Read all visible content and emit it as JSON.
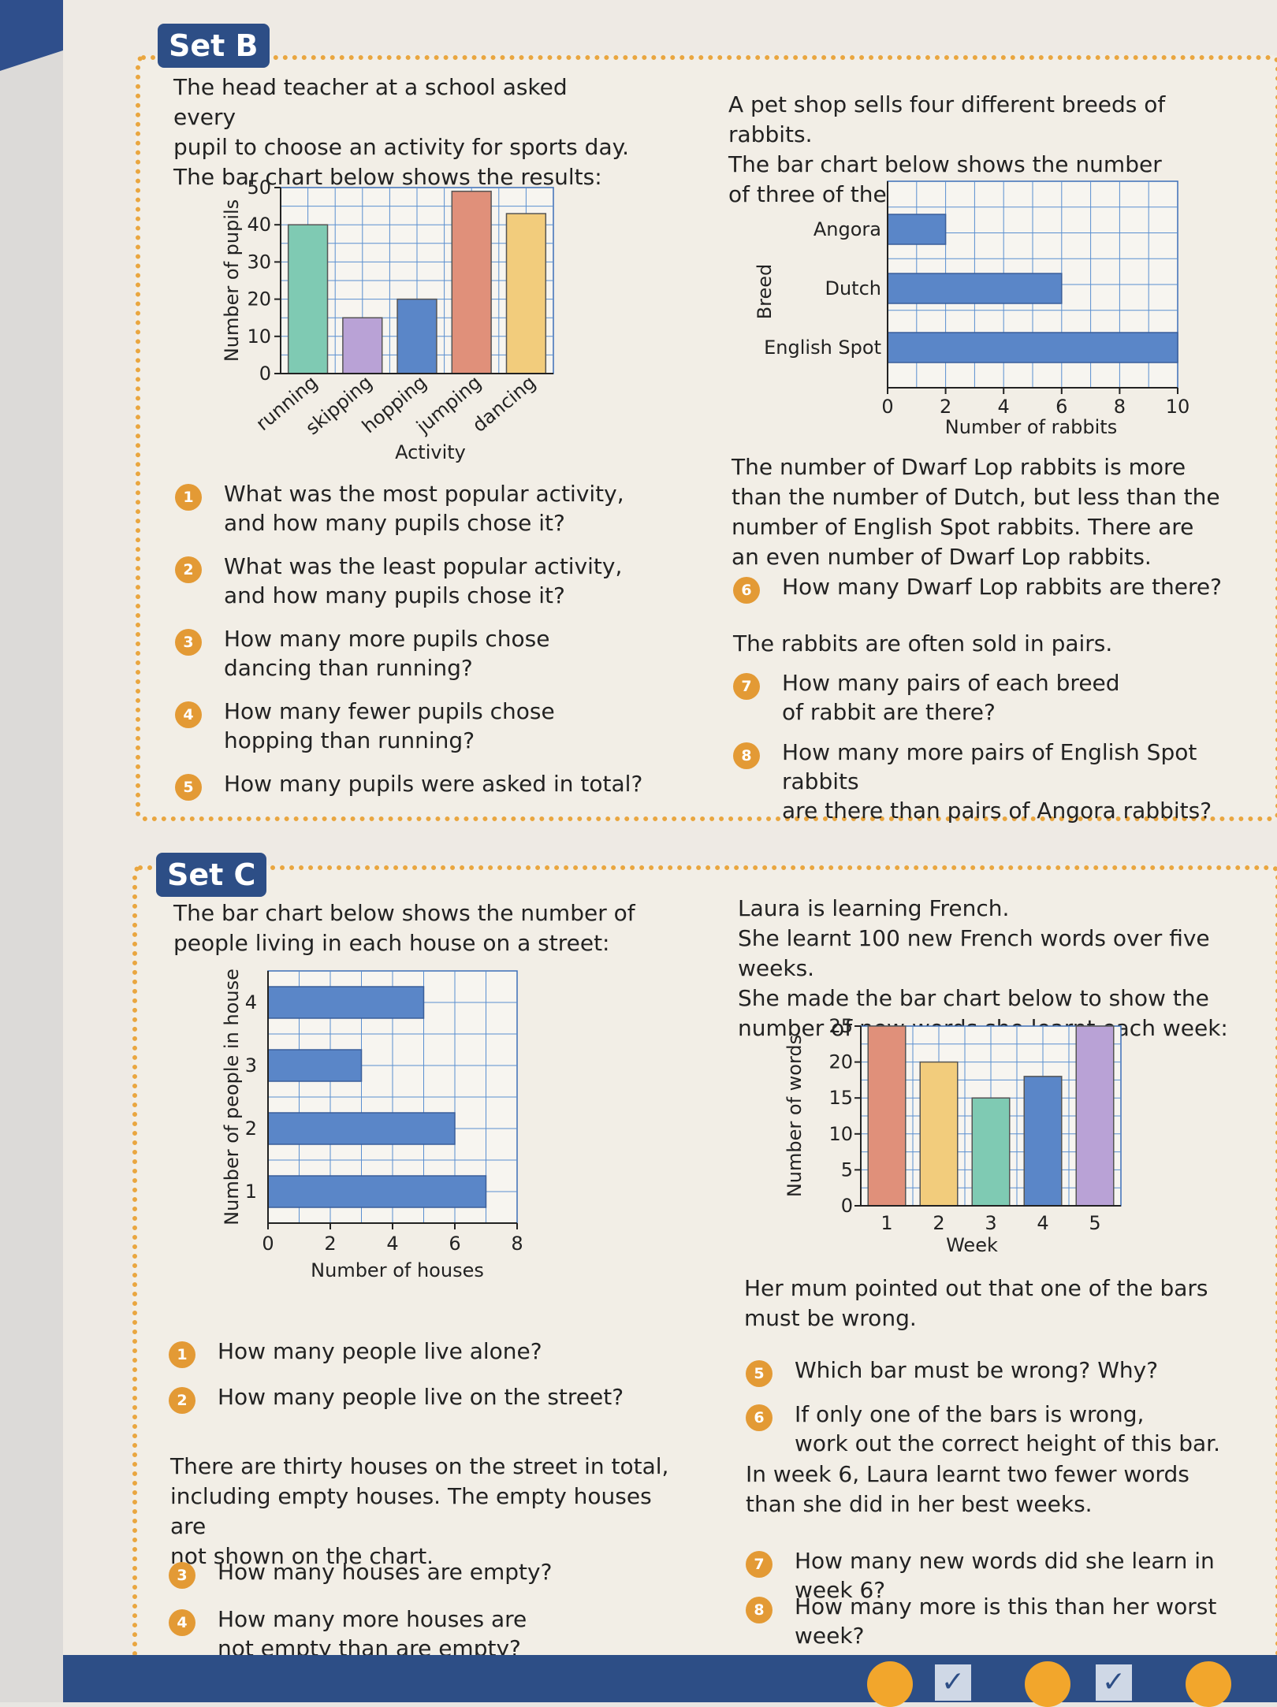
{
  "set_b": {
    "tag": "Set B",
    "intro_left": [
      "The head teacher at a school asked every",
      "pupil to choose an activity for sports day.",
      "The bar chart below shows the results:"
    ],
    "intro_right": [
      "A pet shop sells four different breeds of rabbits.",
      "The bar chart below shows the number",
      "of three of the breeds in the shop:"
    ],
    "questions_left": [
      {
        "num": "1",
        "lines": [
          "What was the most popular activity,",
          "and how many pupils chose it?"
        ]
      },
      {
        "num": "2",
        "lines": [
          "What was the least popular activity,",
          "and how many pupils chose it?"
        ]
      },
      {
        "num": "3",
        "lines": [
          "How many more pupils chose",
          "dancing than running?"
        ]
      },
      {
        "num": "4",
        "lines": [
          "How many fewer pupils chose",
          "hopping than running?"
        ]
      },
      {
        "num": "5",
        "lines": [
          "How many pupils were asked in total?"
        ]
      }
    ],
    "middle_right": [
      "The number of Dwarf Lop rabbits is more",
      "than the number of Dutch, but less than the",
      "number of English Spot rabbits.  There are",
      "an even number of Dwarf Lop rabbits."
    ],
    "q6": {
      "num": "6",
      "lines": [
        "How many Dwarf Lop rabbits are there?"
      ]
    },
    "pairs_text": "The rabbits are often sold in pairs.",
    "questions_right": [
      {
        "num": "7",
        "lines": [
          "How many pairs of each breed",
          "of rabbit are there?"
        ]
      },
      {
        "num": "8",
        "lines": [
          "How many more pairs of English Spot rabbits",
          "are there than pairs of Angora rabbits?"
        ]
      }
    ]
  },
  "set_c": {
    "tag": "Set C",
    "intro_left": [
      "The bar chart below shows the number of",
      "people living in each house on a street:"
    ],
    "intro_right": [
      "Laura is learning French.",
      "She learnt 100 new French words over five weeks.",
      "She made the bar chart below to show the",
      "number of new words she learnt each week:"
    ],
    "questions_left_a": [
      {
        "num": "1",
        "lines": [
          "How many people live alone?"
        ]
      },
      {
        "num": "2",
        "lines": [
          "How many people live on the street?"
        ]
      }
    ],
    "middle_left": [
      "There are thirty houses on the street in total,",
      "including empty houses.  The empty houses are",
      "not shown on the chart."
    ],
    "questions_left_b": [
      {
        "num": "3",
        "lines": [
          "How many houses are empty?"
        ]
      },
      {
        "num": "4",
        "lines": [
          "How many more houses are",
          "not empty than are empty?"
        ]
      }
    ],
    "mum_text": [
      "Her mum pointed out that one of the bars",
      "must be wrong."
    ],
    "questions_right_a": [
      {
        "num": "5",
        "lines": [
          "Which bar must be wrong?  Why?"
        ]
      },
      {
        "num": "6",
        "lines": [
          "If only one of the bars is wrong,",
          "work out the correct height of this bar."
        ]
      }
    ],
    "week6_text": [
      "In week 6, Laura learnt two fewer words",
      "than she did in her best weeks."
    ],
    "questions_right_b": [
      {
        "num": "7",
        "lines": [
          "How many new words did she learn in week 6?"
        ]
      },
      {
        "num": "8",
        "lines": [
          "How many more is this than her worst week?"
        ]
      }
    ]
  },
  "chart_data": [
    {
      "type": "bar",
      "orientation": "vertical",
      "categories": [
        "running",
        "skipping",
        "hopping",
        "jumping",
        "dancing"
      ],
      "values": [
        40,
        15,
        20,
        49,
        43
      ],
      "colors": [
        "#7fcab3",
        "#b9a2d6",
        "#5a86c8",
        "#e0907a",
        "#f2cc7c"
      ],
      "xlabel": "Activity",
      "ylabel": "Number of pupils",
      "yticks": [
        "0",
        "10",
        "20",
        "30",
        "40",
        "50"
      ],
      "ylim": [
        0,
        50
      ],
      "grid": true
    },
    {
      "type": "bar",
      "orientation": "horizontal",
      "categories": [
        "Angora",
        "Dutch",
        "English Spot"
      ],
      "values": [
        2,
        6,
        10
      ],
      "colors": [
        "#5a86c8",
        "#5a86c8",
        "#5a86c8"
      ],
      "xlabel": "Number of rabbits",
      "ylabel": "Breed",
      "xticks": [
        "0",
        "2",
        "4",
        "6",
        "8",
        "10"
      ],
      "xlim": [
        0,
        10
      ],
      "grid": true
    },
    {
      "type": "bar",
      "orientation": "horizontal",
      "categories": [
        "4",
        "3",
        "2",
        "1"
      ],
      "values": [
        5,
        3,
        6,
        7
      ],
      "colors": [
        "#5a86c8",
        "#5a86c8",
        "#5a86c8",
        "#5a86c8"
      ],
      "xlabel": "Number of houses",
      "ylabel": "Number of people in house",
      "xticks": [
        "0",
        "2",
        "4",
        "6",
        "8"
      ],
      "xlim": [
        0,
        8
      ],
      "grid": true
    },
    {
      "type": "bar",
      "orientation": "vertical",
      "categories": [
        "1",
        "2",
        "3",
        "4",
        "5"
      ],
      "values": [
        25,
        20,
        15,
        18,
        25
      ],
      "colors": [
        "#e0907a",
        "#f2cc7c",
        "#7fcab3",
        "#5a86c8",
        "#b9a2d6"
      ],
      "xlabel": "Week",
      "ylabel": "Number of words",
      "yticks": [
        "0",
        "5",
        "10",
        "15",
        "20",
        "25"
      ],
      "ylim": [
        0,
        25
      ],
      "grid": true
    }
  ]
}
